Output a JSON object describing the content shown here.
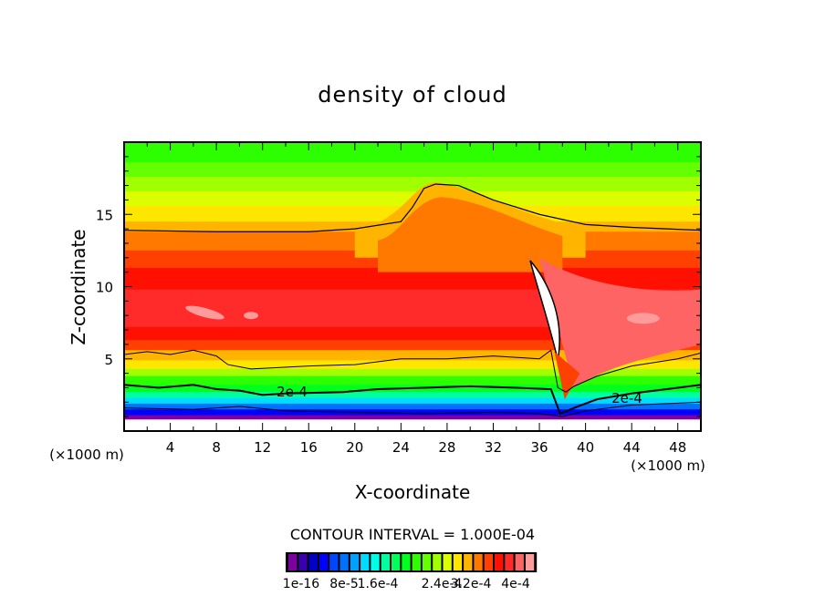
{
  "chart_data": {
    "type": "heatmap",
    "title": "density of cloud",
    "xlabel": "X-coordinate",
    "ylabel": "Z-coordinate",
    "x_unit_label": "(×1000 m)",
    "y_unit_label": "(×1000 m)",
    "xlim": [
      0,
      50
    ],
    "ylim": [
      0,
      20
    ],
    "x_ticks": [
      4,
      8,
      12,
      16,
      20,
      24,
      28,
      32,
      36,
      40,
      44,
      48
    ],
    "x_tick_labels": [
      "4",
      "8",
      "12",
      "16",
      "20",
      "24",
      "28",
      "32",
      "36",
      "40",
      "44",
      "48"
    ],
    "x_minor_step": 2,
    "y_ticks": [
      5,
      10,
      15
    ],
    "y_tick_labels": [
      "5",
      "10",
      "15"
    ],
    "y_minor_step": 1,
    "contour_interval_text": "CONTOUR INTERVAL = 1.000E-04",
    "contour_label": "2e-4",
    "colorbar": {
      "colors": [
        "#7f00a0",
        "#3a00b0",
        "#0000c8",
        "#0000ff",
        "#0046ff",
        "#0070ff",
        "#00a0ff",
        "#00dcff",
        "#00ffe6",
        "#00ffa0",
        "#00ff5a",
        "#00ff1e",
        "#2dff00",
        "#64ff00",
        "#a0ff00",
        "#dcff00",
        "#ffe600",
        "#ffb400",
        "#ff7800",
        "#ff4000",
        "#ff1000",
        "#ff2a2a",
        "#ff6464",
        "#ff9b9b"
      ],
      "tick_labels": [
        "1e-16",
        "8e-5",
        "1.6e-4",
        "2.4e-4",
        "3.2e-4",
        "4e-4"
      ]
    },
    "bands_description_levels": {
      "levels_upper_layer_z": [
        19,
        18,
        17,
        16,
        15,
        14
      ]
    }
  }
}
